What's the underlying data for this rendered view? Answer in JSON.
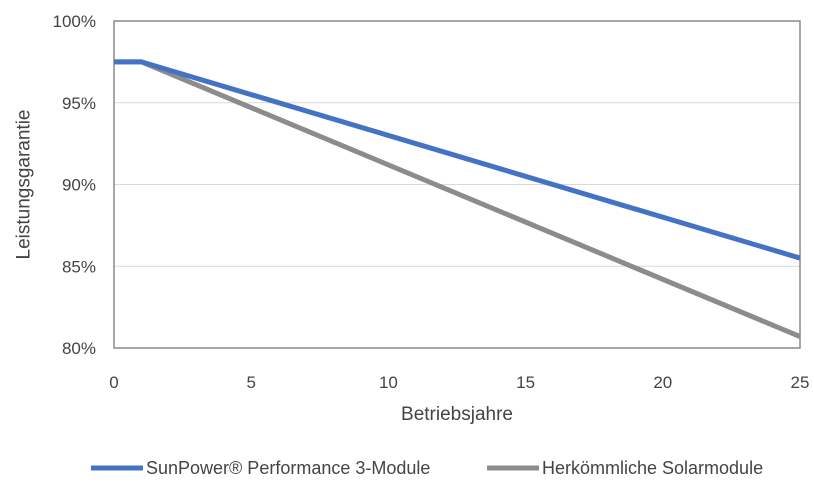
{
  "chart_data": {
    "type": "line",
    "xlabel": "Betriebsjahre",
    "ylabel": "Leistungsgarantie",
    "xlim": [
      0,
      25
    ],
    "ylim": [
      0.8,
      1.0
    ],
    "x_ticks": [
      0,
      5,
      10,
      15,
      20,
      25
    ],
    "x_tick_labels": [
      "0",
      "5",
      "10",
      "15",
      "20",
      "25"
    ],
    "y_ticks": [
      0.8,
      0.85,
      0.9,
      0.95,
      1.0
    ],
    "y_tick_labels": [
      "80%",
      "85%",
      "90%",
      "95%",
      "100%"
    ],
    "grid": "horizontal",
    "legend_position": "bottom",
    "series": [
      {
        "name": "SunPower® Performance 3-Module",
        "color": "#4472c4",
        "x": [
          0,
          1,
          25
        ],
        "values": [
          0.975,
          0.975,
          0.855
        ]
      },
      {
        "name": "Herkömmliche Solarmodule",
        "color": "#8c8c8c",
        "x": [
          0,
          1,
          25
        ],
        "values": [
          0.975,
          0.975,
          0.807
        ]
      }
    ]
  }
}
